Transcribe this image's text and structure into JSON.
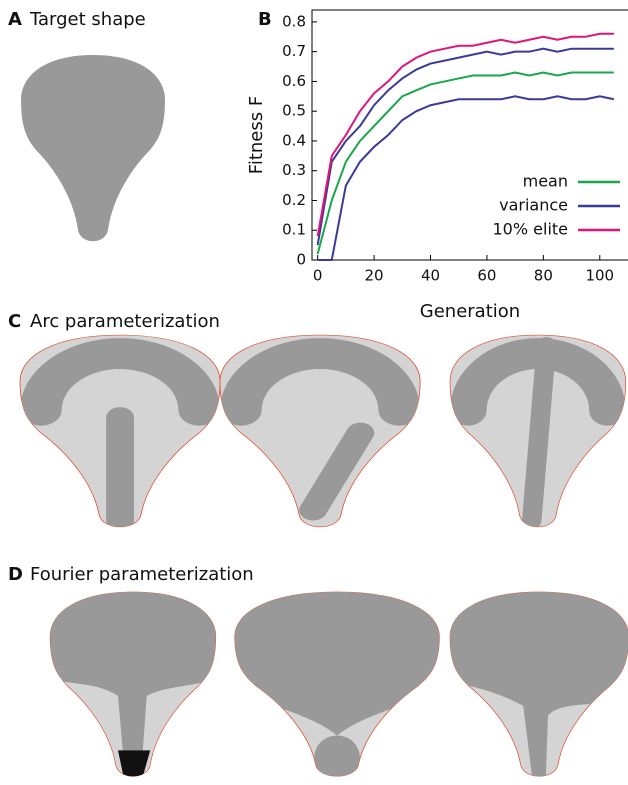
{
  "panels": {
    "a": "A",
    "a_title": "Target shape",
    "c": "C",
    "c_title": "Arc parameterization",
    "d": "D",
    "d_title": "Fourier parameterization"
  },
  "chart_data": {
    "type": "line",
    "label": "B",
    "xlabel": "Generation",
    "ylabel": "Fitness F",
    "x": [
      0,
      5,
      10,
      15,
      20,
      25,
      30,
      35,
      40,
      45,
      50,
      55,
      60,
      65,
      70,
      75,
      80,
      85,
      90,
      95,
      100,
      105
    ],
    "xlim": [
      -2,
      110
    ],
    "xticks": [
      0,
      20,
      40,
      60,
      80,
      100
    ],
    "ylim": [
      0,
      0.84
    ],
    "yticks": [
      0,
      0.1,
      0.2,
      0.3,
      0.4,
      0.5,
      0.6,
      0.7,
      0.8
    ],
    "legend": "lower-right",
    "series": [
      {
        "name": "mean",
        "color": "#1aa64a",
        "values": [
          0.02,
          0.2,
          0.33,
          0.4,
          0.45,
          0.5,
          0.55,
          0.57,
          0.59,
          0.6,
          0.61,
          0.62,
          0.62,
          0.62,
          0.63,
          0.62,
          0.63,
          0.62,
          0.63,
          0.63,
          0.63,
          0.63
        ]
      },
      {
        "name": "variance",
        "color": "#3a3a9a",
        "values": [
          0.05,
          0.33,
          0.4,
          0.45,
          0.52,
          0.57,
          0.61,
          0.64,
          0.66,
          0.67,
          0.68,
          0.69,
          0.7,
          0.69,
          0.7,
          0.7,
          0.71,
          0.7,
          0.71,
          0.71,
          0.71,
          0.71
        ],
        "lower": [
          0,
          0,
          0.25,
          0.33,
          0.38,
          0.42,
          0.47,
          0.5,
          0.52,
          0.53,
          0.54,
          0.54,
          0.54,
          0.54,
          0.55,
          0.54,
          0.54,
          0.55,
          0.54,
          0.54,
          0.55,
          0.54
        ]
      },
      {
        "name": "10% elite",
        "color": "#e0147a",
        "values": [
          0.08,
          0.35,
          0.42,
          0.5,
          0.56,
          0.6,
          0.65,
          0.68,
          0.7,
          0.71,
          0.72,
          0.72,
          0.73,
          0.74,
          0.73,
          0.74,
          0.75,
          0.74,
          0.75,
          0.75,
          0.76,
          0.76
        ]
      }
    ]
  }
}
